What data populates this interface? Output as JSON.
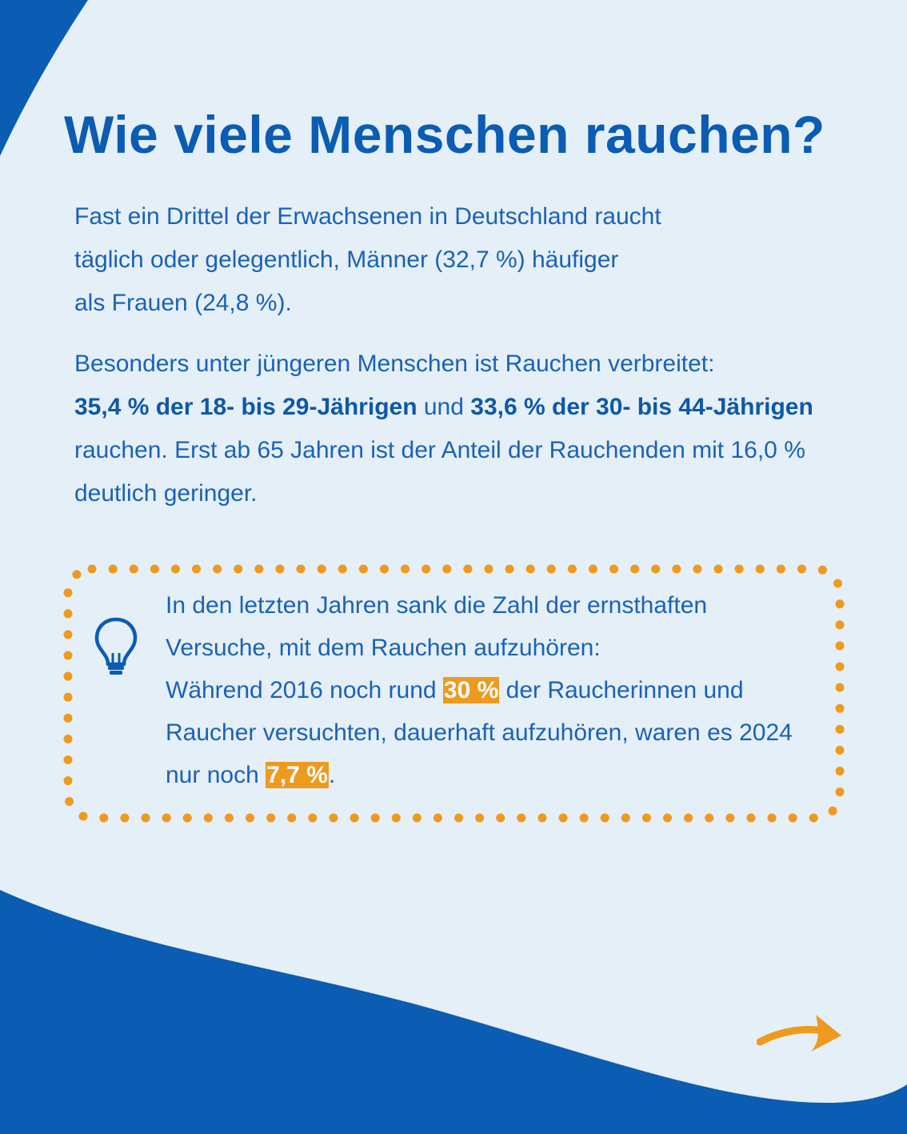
{
  "title": "Wie viele Menschen rauchen?",
  "paragraph1": {
    "line1": "Fast ein Drittel der Erwachsenen in Deutschland raucht",
    "line2": "täglich oder gelegentlich, Männer (32,7 %) häufiger",
    "line3": "als Frauen (24,8 %)."
  },
  "paragraph2": {
    "text1": "Besonders unter jüngeren Menschen ist Rauchen verbreitet:",
    "bold1": "35,4 % der 18- bis 29-Jährigen",
    "text2": " und ",
    "bold2": "33,6 % der 30- bis 44-Jährigen",
    "text3": " rauchen. Erst ab 65 Jahren ist der Anteil der Rauchenden mit 16,0 % deutlich geringer."
  },
  "tip": {
    "line1": "In den letzten Jahren sank die Zahl der ernsthaften",
    "line2": "Versuche, mit dem Rauchen aufzuhören:",
    "text1": "Während 2016 noch rund ",
    "highlight1": "30 %",
    "text2": " der Raucherinnen und Raucher versuchten, dauerhaft aufzuhören, waren es 2024 nur noch ",
    "highlight2": "7,7 %",
    "text3": "."
  },
  "icons": {
    "tip_icon": "lightbulb-icon",
    "next_icon": "arrow-right-icon"
  },
  "colors": {
    "background": "#e5eff8",
    "brand_blue": "#0b5cb3",
    "accent_orange": "#ee9a1e"
  }
}
